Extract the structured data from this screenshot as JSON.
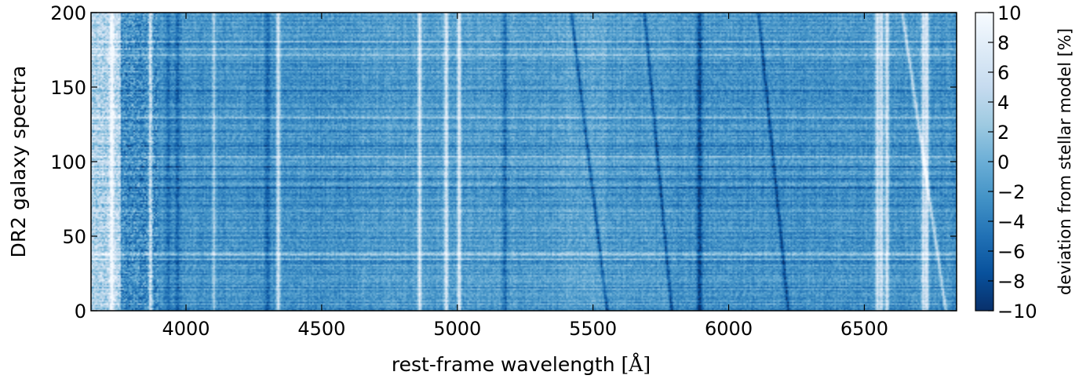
{
  "chart_data": {
    "type": "heatmap",
    "xlabel": "rest-frame wavelength",
    "xunit": "[Å]",
    "ylabel": "DR2 galaxy spectra",
    "xlim": [
      3650,
      6840
    ],
    "ylim": [
      0,
      200
    ],
    "xticks": [
      4000,
      4500,
      5000,
      5500,
      6000,
      6500
    ],
    "xtick_labels": [
      "4000",
      "4500",
      "5000",
      "5500",
      "6000",
      "6500"
    ],
    "yticks": [
      0,
      50,
      100,
      150,
      200
    ],
    "ytick_labels": [
      "0",
      "50",
      "100",
      "150",
      "200"
    ],
    "colorbar": {
      "label": "deviation from stellar model [%]",
      "range": [
        -10,
        10
      ],
      "ticks": [
        10,
        8,
        6,
        4,
        2,
        0,
        -2,
        -4,
        -6,
        -8,
        -10
      ],
      "tick_labels": [
        "10",
        "8",
        "6",
        "4",
        "2",
        "0",
        "−2",
        "−4",
        "−6",
        "−8",
        "−10"
      ],
      "cmap_stops": [
        "#08306b",
        "#08519c",
        "#2171b5",
        "#4292c6",
        "#6baed6",
        "#9ecae1",
        "#c6dbef",
        "#deebf7",
        "#f7fbff"
      ]
    },
    "features": {
      "emission_lines_positive": [
        3727,
        3869,
        4102,
        4340,
        4861,
        4959,
        5007,
        6548,
        6563,
        6584,
        6717,
        6731
      ],
      "absorption_lines_negative": [
        3934,
        3969,
        4101,
        4300,
        5175,
        5890,
        5896
      ],
      "diagonal_sky_residual_tracks": [
        {
          "y0_wavelength": 5552,
          "y200_wavelength": 5420,
          "sign": "negative"
        },
        {
          "y0_wavelength": 5790,
          "y200_wavelength": 5690,
          "sign": "negative"
        },
        {
          "y0_wavelength": 6220,
          "y200_wavelength": 6110,
          "sign": "negative"
        },
        {
          "y0_wavelength": 6800,
          "y200_wavelength": 6640,
          "sign": "positive"
        }
      ]
    },
    "grid": false
  }
}
